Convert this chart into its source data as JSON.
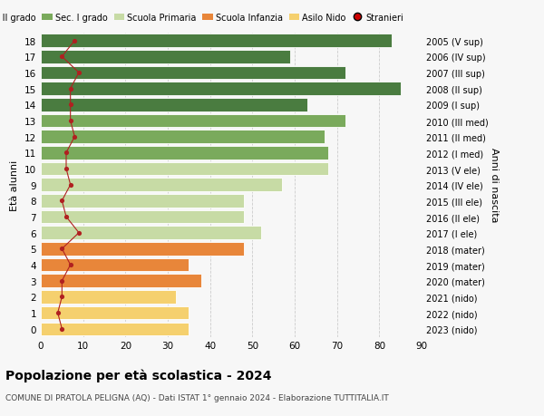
{
  "ages": [
    0,
    1,
    2,
    3,
    4,
    5,
    6,
    7,
    8,
    9,
    10,
    11,
    12,
    13,
    14,
    15,
    16,
    17,
    18
  ],
  "bar_values": [
    35,
    35,
    32,
    38,
    35,
    48,
    52,
    48,
    48,
    57,
    68,
    68,
    67,
    72,
    63,
    85,
    72,
    59,
    83
  ],
  "bar_colors": [
    "#f5d06e",
    "#f5d06e",
    "#f5d06e",
    "#e8863a",
    "#e8863a",
    "#e8863a",
    "#c7dba5",
    "#c7dba5",
    "#c7dba5",
    "#c7dba5",
    "#c7dba5",
    "#7aaa5c",
    "#7aaa5c",
    "#7aaa5c",
    "#4a7c40",
    "#4a7c40",
    "#4a7c40",
    "#4a7c40",
    "#4a7c40"
  ],
  "stranieri_values": [
    5,
    4,
    5,
    5,
    7,
    5,
    9,
    6,
    5,
    7,
    6,
    6,
    8,
    7,
    7,
    7,
    9,
    5,
    8
  ],
  "right_labels": [
    "2023 (nido)",
    "2022 (nido)",
    "2021 (nido)",
    "2020 (mater)",
    "2019 (mater)",
    "2018 (mater)",
    "2017 (I ele)",
    "2016 (II ele)",
    "2015 (III ele)",
    "2014 (IV ele)",
    "2013 (V ele)",
    "2012 (I med)",
    "2011 (II med)",
    "2010 (III med)",
    "2009 (I sup)",
    "2008 (II sup)",
    "2007 (III sup)",
    "2006 (IV sup)",
    "2005 (V sup)"
  ],
  "legend_labels": [
    "Sec. II grado",
    "Sec. I grado",
    "Scuola Primaria",
    "Scuola Infanzia",
    "Asilo Nido",
    "Stranieri"
  ],
  "legend_colors": [
    "#4a7c40",
    "#7aaa5c",
    "#c7dba5",
    "#e8863a",
    "#f5d06e",
    "#cc0000"
  ],
  "ylabel_left": "Età alunni",
  "ylabel_right": "Anni di nascita",
  "title": "Popolazione per età scolastica - 2024",
  "subtitle": "COMUNE DI PRATOLA PELIGNA (AQ) - Dati ISTAT 1° gennaio 2024 - Elaborazione TUTTITALIA.IT",
  "xlim": [
    0,
    90
  ],
  "xticks": [
    0,
    10,
    20,
    30,
    40,
    50,
    60,
    70,
    80,
    90
  ],
  "bg_color": "#f7f7f7",
  "line_color": "#b02020"
}
